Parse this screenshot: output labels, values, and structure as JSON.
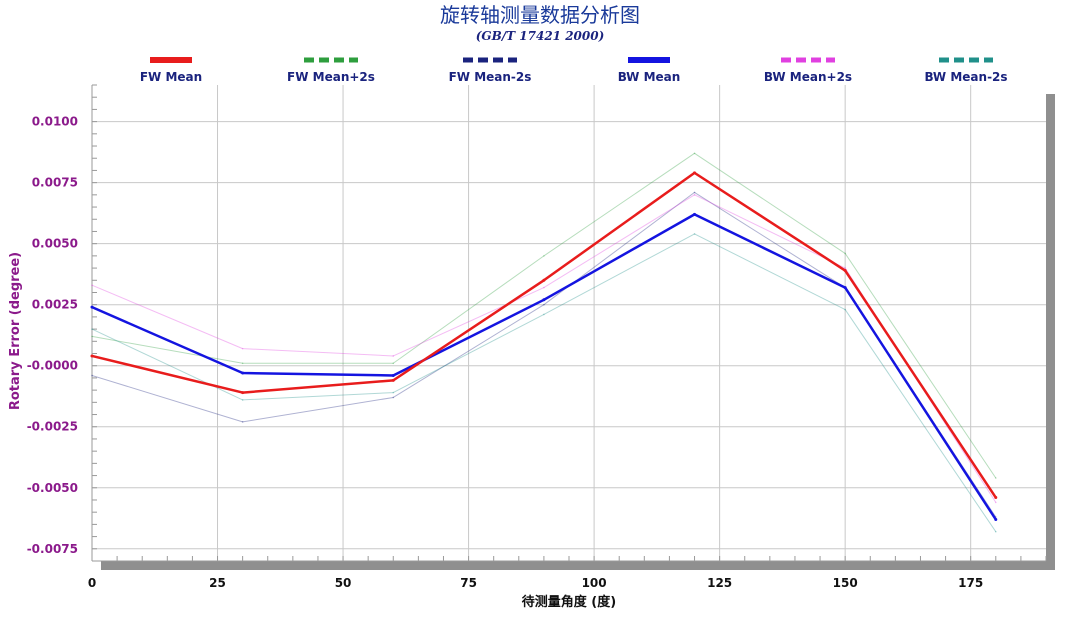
{
  "chart_data": {
    "type": "line",
    "title": "旋转轴测量数据分析图",
    "subtitle": "(GB/T 17421 2000)",
    "xlabel": "待测量角度 (度)",
    "ylabel": "Rotary Error (degree)",
    "xlim": [
      0,
      190
    ],
    "ylim": [
      -0.008,
      0.0115
    ],
    "xticks": [
      0,
      25,
      50,
      75,
      100,
      125,
      150,
      175
    ],
    "xtick_labels": [
      "0",
      "25",
      "50",
      "75",
      "100",
      "125",
      "150",
      "175"
    ],
    "yticks": [
      0.01,
      0.0075,
      0.005,
      0.0025,
      0,
      -0.0025,
      -0.005,
      -0.0075
    ],
    "ytick_labels": [
      "0.0100",
      "0.0075",
      "0.0050",
      "0.0025",
      "-0.0000",
      "-0.0025",
      "-0.0050",
      "-0.0075"
    ],
    "grid": true,
    "legend_position": "top",
    "x": [
      0,
      30,
      60,
      90,
      120,
      150,
      180
    ],
    "series": [
      {
        "name": "FW Mean",
        "color": "#e81c1c",
        "style": "solid",
        "emphasis": "bold",
        "values": [
          0.0004,
          -0.0011,
          -0.0006,
          0.0035,
          0.0079,
          0.0039,
          -0.0054
        ]
      },
      {
        "name": "FW Mean+2s",
        "color": "#2e9e3e",
        "style": "dashed",
        "emphasis": "thin",
        "values": [
          0.0012,
          0.0001,
          0.0001,
          0.0045,
          0.0087,
          0.0046,
          -0.0046
        ]
      },
      {
        "name": "FW Mean-2s",
        "color": "#1a237e",
        "style": "dashed",
        "emphasis": "thin",
        "values": [
          -0.0004,
          -0.0023,
          -0.0013,
          0.0025,
          0.0071,
          0.0032,
          -0.0062
        ]
      },
      {
        "name": "BW Mean",
        "color": "#1414e0",
        "style": "solid",
        "emphasis": "bold",
        "values": [
          0.0024,
          -0.0003,
          -0.0004,
          0.0027,
          0.0062,
          0.0032,
          -0.0063
        ]
      },
      {
        "name": "BW Mean+2s",
        "color": "#e040e0",
        "style": "dashed",
        "emphasis": "thin",
        "values": [
          0.0033,
          0.0007,
          0.0004,
          0.0032,
          0.007,
          0.004,
          -0.0056
        ]
      },
      {
        "name": "BW Mean-2s",
        "color": "#20908a",
        "style": "dashed",
        "emphasis": "thin",
        "values": [
          0.0015,
          -0.0014,
          -0.0011,
          0.0021,
          0.0054,
          0.0023,
          -0.0068
        ]
      }
    ]
  }
}
